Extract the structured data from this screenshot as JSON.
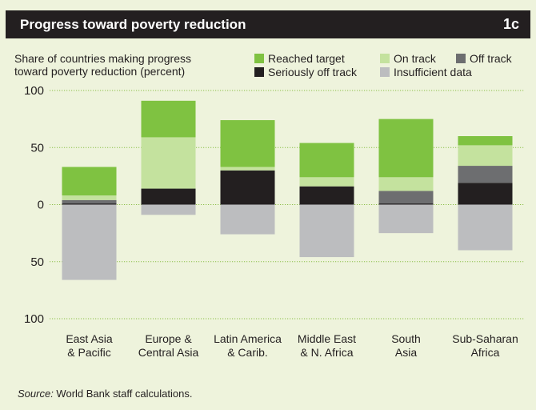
{
  "header": {
    "title": "Progress toward poverty reduction",
    "figure_number": "1c"
  },
  "y_axis_label_lines": [
    "Share of countries making progress",
    "toward poverty reduction (percent)"
  ],
  "legend": [
    {
      "label": "Reached target",
      "color": "#7fc241"
    },
    {
      "label": "On track",
      "color": "#c4e29e"
    },
    {
      "label": "Off track",
      "color": "#6d6e70"
    },
    {
      "label": "Seriously off track",
      "color": "#231f20"
    },
    {
      "label": "Insufficient data",
      "color": "#bcbdbf"
    }
  ],
  "source": {
    "prefix": "Source:",
    "text": " World Bank staff calculations."
  },
  "chart_data": {
    "type": "bar",
    "stacked": true,
    "title": "Progress toward poverty reduction",
    "ylabel": "Share of countries making progress toward poverty reduction (percent)",
    "ylim": [
      -100,
      100
    ],
    "y_ticks": [
      100,
      50,
      0,
      -50,
      -100
    ],
    "y_tick_labels": [
      "100",
      "50",
      "0",
      "50",
      "100"
    ],
    "grid": true,
    "legend_position": "top-right",
    "categories": [
      [
        "East Asia",
        "& Pacific"
      ],
      [
        "Europe &",
        "Central Asia"
      ],
      [
        "Latin America",
        "& Carib."
      ],
      [
        "Middle East",
        "& N. Africa"
      ],
      [
        "South",
        "Asia"
      ],
      [
        "Sub-Saharan",
        "Africa"
      ]
    ],
    "series": [
      {
        "name": "Seriously off track",
        "color": "#231f20",
        "values": [
          1,
          14,
          30,
          16,
          1,
          19
        ]
      },
      {
        "name": "Off track",
        "color": "#6d6e70",
        "values": [
          3,
          0,
          0,
          0,
          11,
          15
        ]
      },
      {
        "name": "On track",
        "color": "#c4e29e",
        "values": [
          4,
          45,
          3,
          8,
          12,
          18
        ]
      },
      {
        "name": "Reached target",
        "color": "#7fc241",
        "values": [
          25,
          32,
          41,
          30,
          51,
          8
        ]
      },
      {
        "name": "Insufficient data",
        "color": "#bcbdbf",
        "values": [
          -66,
          -9,
          -26,
          -46,
          -25,
          -40
        ]
      }
    ]
  }
}
